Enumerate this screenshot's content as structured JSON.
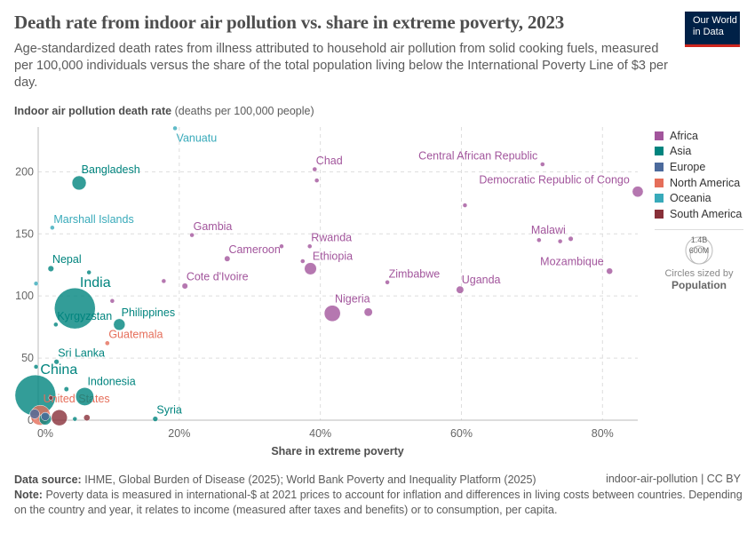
{
  "header": {
    "title": "Death rate from indoor air pollution vs. share in extreme poverty, 2023",
    "subtitle": "Age-standardized death rates from illness attributed to household air pollution from solid cooking fuels, measured per 100,000 individuals versus the share of the total population living below the International Poverty Line of $3 per day.",
    "logo_line1": "Our World",
    "logo_line2": "in Data"
  },
  "colors": {
    "Africa": "#a2559c",
    "Asia": "#00847e",
    "Europe": "#4c6a9c",
    "North America": "#e56e5a",
    "Oceania": "#38aaba",
    "South America": "#883039"
  },
  "chart_data": {
    "type": "scatter",
    "ylabel_bold": "Indoor air pollution death rate",
    "ylabel_unit": "(deaths per 100,000 people)",
    "xlabel": "Share in extreme poverty",
    "xlim": [
      0,
      85
    ],
    "ylim": [
      0,
      236
    ],
    "xticks": [
      {
        "v": 0,
        "label": "0%"
      },
      {
        "v": 20,
        "label": "20%"
      },
      {
        "v": 40,
        "label": "40%"
      },
      {
        "v": 60,
        "label": "60%"
      },
      {
        "v": 80,
        "label": "80%"
      }
    ],
    "yticks": [
      {
        "v": 0,
        "label": "0"
      },
      {
        "v": 50,
        "label": "50"
      },
      {
        "v": 100,
        "label": "100"
      },
      {
        "v": 150,
        "label": "150"
      },
      {
        "v": 200,
        "label": "200"
      }
    ],
    "grid": true,
    "legend_position": "right",
    "legend": [
      "Africa",
      "Asia",
      "Europe",
      "North America",
      "Oceania",
      "South America"
    ],
    "size_legend": {
      "big": "1.4B",
      "small": "600M",
      "caption": "Circles sized by",
      "variable": "Population"
    },
    "points": [
      {
        "name": "Vanuatu",
        "region": "Oceania",
        "x": 19.4,
        "y": 235,
        "pop": 0.3
      },
      {
        "name": "Bangladesh",
        "region": "Asia",
        "x": 5.8,
        "y": 191,
        "pop": 173
      },
      {
        "name": "Marshall Islands",
        "region": "Oceania",
        "x": 2,
        "y": 155,
        "pop": 0.04
      },
      {
        "name": "Nepal",
        "region": "Asia",
        "x": 1.8,
        "y": 122,
        "pop": 30
      },
      {
        "name": "",
        "region": "Asia",
        "x": 7.2,
        "y": 119,
        "pop": 7
      },
      {
        "name": "",
        "region": "Oceania",
        "x": -0.3,
        "y": 110,
        "pop": 1
      },
      {
        "name": "India",
        "region": "Asia",
        "x": 5.2,
        "y": 90,
        "pop": 1430
      },
      {
        "name": "Kyrgyzstan",
        "region": "Asia",
        "x": 2.5,
        "y": 77,
        "pop": 7
      },
      {
        "name": "Philippines",
        "region": "Asia",
        "x": 11.5,
        "y": 77,
        "pop": 115
      },
      {
        "name": "Guatemala",
        "region": "North America",
        "x": 9.8,
        "y": 62,
        "pop": 18
      },
      {
        "name": "Sri Lanka",
        "region": "Asia",
        "x": 2.6,
        "y": 47,
        "pop": 22
      },
      {
        "name": "",
        "region": "Asia",
        "x": -0.3,
        "y": 43,
        "pop": 5
      },
      {
        "name": "China",
        "region": "Asia",
        "x": -0.4,
        "y": 20,
        "pop": 1420
      },
      {
        "name": "Indonesia",
        "region": "Asia",
        "x": 6.6,
        "y": 19,
        "pop": 278
      },
      {
        "name": "",
        "region": "Asia",
        "x": 4,
        "y": 25,
        "pop": 20
      },
      {
        "name": "United States",
        "region": "North America",
        "x": 0.3,
        "y": 4,
        "pop": 340
      },
      {
        "name": "Syria",
        "region": "Asia",
        "x": 16.6,
        "y": 1,
        "pop": 23
      },
      {
        "name": "",
        "region": "South America",
        "x": 3,
        "y": 2,
        "pop": 216
      },
      {
        "name": "",
        "region": "South America",
        "x": 6.9,
        "y": 2,
        "pop": 34
      },
      {
        "name": "",
        "region": "South America",
        "x": 1.8,
        "y": 18,
        "pop": 12
      },
      {
        "name": "",
        "region": "Europe",
        "x": 1,
        "y": 3,
        "pop": 60
      },
      {
        "name": "",
        "region": "Europe",
        "x": -0.5,
        "y": 5,
        "pop": 80
      },
      {
        "name": "",
        "region": "Asia",
        "x": 1,
        "y": 1,
        "pop": 125
      },
      {
        "name": "",
        "region": "Asia",
        "x": 5.2,
        "y": 1,
        "pop": 10
      },
      {
        "name": "Chad",
        "region": "Africa",
        "x": 39.2,
        "y": 202,
        "pop": 18
      },
      {
        "name": "",
        "region": "Africa",
        "x": 39.5,
        "y": 193,
        "pop": 5
      },
      {
        "name": "Central African Republic",
        "region": "Africa",
        "x": 71.5,
        "y": 206,
        "pop": 5
      },
      {
        "name": "Democratic Republic of Congo",
        "region": "Africa",
        "x": 85,
        "y": 184,
        "pop": 102
      },
      {
        "name": "",
        "region": "Africa",
        "x": 60.5,
        "y": 173,
        "pop": 5
      },
      {
        "name": "Gambia",
        "region": "Africa",
        "x": 21.8,
        "y": 149,
        "pop": 3
      },
      {
        "name": "Malawi",
        "region": "Africa",
        "x": 75.5,
        "y": 146,
        "pop": 21
      },
      {
        "name": "",
        "region": "Africa",
        "x": 71,
        "y": 145,
        "pop": 8
      },
      {
        "name": "",
        "region": "Africa",
        "x": 74,
        "y": 144,
        "pop": 4
      },
      {
        "name": "Cameroon",
        "region": "Africa",
        "x": 26.8,
        "y": 130,
        "pop": 28
      },
      {
        "name": "",
        "region": "Africa",
        "x": 34.5,
        "y": 140,
        "pop": 6
      },
      {
        "name": "",
        "region": "Africa",
        "x": 37.5,
        "y": 128,
        "pop": 14
      },
      {
        "name": "Rwanda",
        "region": "Africa",
        "x": 38.5,
        "y": 140,
        "pop": 14
      },
      {
        "name": "Ethiopia",
        "region": "Africa",
        "x": 38.6,
        "y": 122,
        "pop": 126
      },
      {
        "name": "Cote d'Ivoire",
        "region": "Africa",
        "x": 20.8,
        "y": 108,
        "pop": 29
      },
      {
        "name": "",
        "region": "Africa",
        "x": 17.8,
        "y": 112,
        "pop": 9
      },
      {
        "name": "Zimbabwe",
        "region": "Africa",
        "x": 49.5,
        "y": 111,
        "pop": 16
      },
      {
        "name": "Mozambique",
        "region": "Africa",
        "x": 81,
        "y": 120,
        "pop": 33
      },
      {
        "name": "Uganda",
        "region": "Africa",
        "x": 59.8,
        "y": 105,
        "pop": 48
      },
      {
        "name": "Nigeria",
        "region": "Africa",
        "x": 41.7,
        "y": 86,
        "pop": 223
      },
      {
        "name": "",
        "region": "Africa",
        "x": 46.8,
        "y": 87,
        "pop": 60
      },
      {
        "name": "",
        "region": "Africa",
        "x": 10.5,
        "y": 96,
        "pop": 8
      }
    ]
  },
  "footer": {
    "source_label": "Data source:",
    "source": "IHME, Global Burden of Disease (2025); World Bank Poverty and Inequality Platform (2025)",
    "note_label": "Note:",
    "note": "Poverty data is measured in international-$ at 2021 prices to account for inflation and differences in living costs between countries. Depending on the country and year, it relates to income (measured after taxes and benefits) or to consumption, per capita.",
    "right": "indoor-air-pollution | CC BY"
  }
}
